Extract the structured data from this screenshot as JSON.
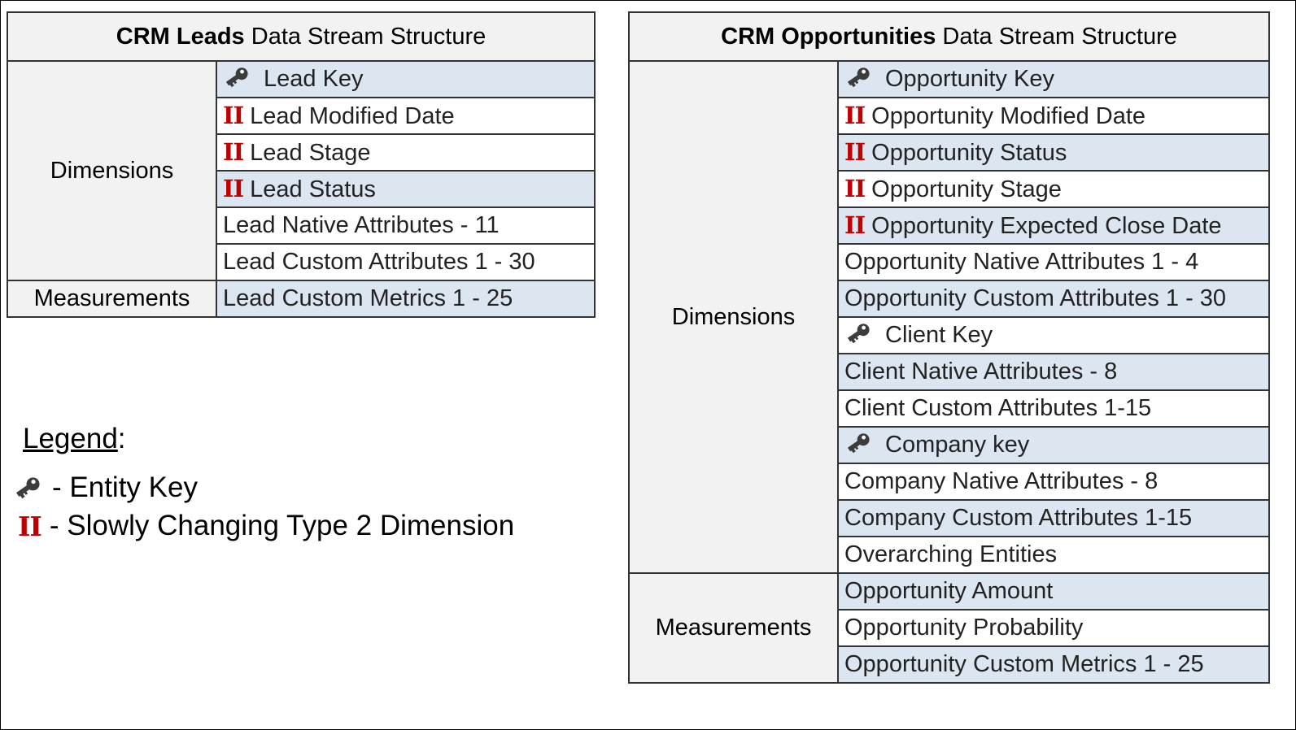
{
  "leads": {
    "title_bold": "CRM Leads",
    "title_rest": " Data Stream Structure",
    "dimensions_label": "Dimensions",
    "measurements_label": "Measurements",
    "rows": [
      {
        "text": "Lead Key",
        "marker": "key",
        "shade": "blue"
      },
      {
        "text": "Lead Modified Date",
        "marker": "scd",
        "shade": "white"
      },
      {
        "text": "Lead Stage",
        "marker": "scd",
        "shade": "white"
      },
      {
        "text": "Lead Status",
        "marker": "scd",
        "shade": "blue"
      },
      {
        "text": "Lead Native Attributes - 11",
        "marker": "",
        "shade": "white"
      },
      {
        "text": "Lead Custom Attributes 1 - 30",
        "marker": "",
        "shade": "white"
      },
      {
        "text": "Lead Custom Metrics 1 - 25",
        "marker": "",
        "shade": "blue"
      }
    ]
  },
  "opportunities": {
    "title_bold": "CRM Opportunities",
    "title_rest": " Data Stream Structure",
    "dimensions_label": "Dimensions",
    "measurements_label": "Measurements",
    "rows": [
      {
        "text": "Opportunity Key",
        "marker": "key",
        "shade": "blue"
      },
      {
        "text": "Opportunity Modified Date",
        "marker": "scd",
        "shade": "white"
      },
      {
        "text": "Opportunity Status",
        "marker": "scd",
        "shade": "blue"
      },
      {
        "text": "Opportunity Stage",
        "marker": "scd",
        "shade": "white"
      },
      {
        "text": "Opportunity Expected Close Date",
        "marker": "scd",
        "shade": "blue"
      },
      {
        "text": "Opportunity Native Attributes 1 - 4",
        "marker": "",
        "shade": "white"
      },
      {
        "text": "Opportunity Custom Attributes 1 - 30",
        "marker": "",
        "shade": "blue"
      },
      {
        "text": "Client Key",
        "marker": "key",
        "shade": "white"
      },
      {
        "text": "Client Native Attributes - 8",
        "marker": "",
        "shade": "blue"
      },
      {
        "text": "Client Custom Attributes 1-15",
        "marker": "",
        "shade": "white"
      },
      {
        "text": "Company key",
        "marker": "key",
        "shade": "blue"
      },
      {
        "text": "Company Native Attributes - 8",
        "marker": "",
        "shade": "white"
      },
      {
        "text": "Company Custom Attributes 1-15",
        "marker": "",
        "shade": "blue"
      },
      {
        "text": "Overarching Entities",
        "marker": "",
        "shade": "white"
      },
      {
        "text": "Opportunity Amount",
        "marker": "",
        "shade": "blue"
      },
      {
        "text": "Opportunity Probability",
        "marker": "",
        "shade": "white"
      },
      {
        "text": "Opportunity Custom Metrics 1 - 25",
        "marker": "",
        "shade": "blue"
      }
    ]
  },
  "legend": {
    "title": "Legend",
    "title_suffix": ":",
    "key_desc": "- Entity Key",
    "scd_desc": "- Slowly Changing Type 2 Dimension",
    "scd_symbol": "II"
  },
  "colors": {
    "row_blue": "#dce6f1",
    "row_white": "#ffffff",
    "category_bg": "#f2f2f2",
    "scd_red": "#c00000"
  },
  "icons": {
    "key": "key-icon",
    "scd": "scd-type2-icon"
  }
}
